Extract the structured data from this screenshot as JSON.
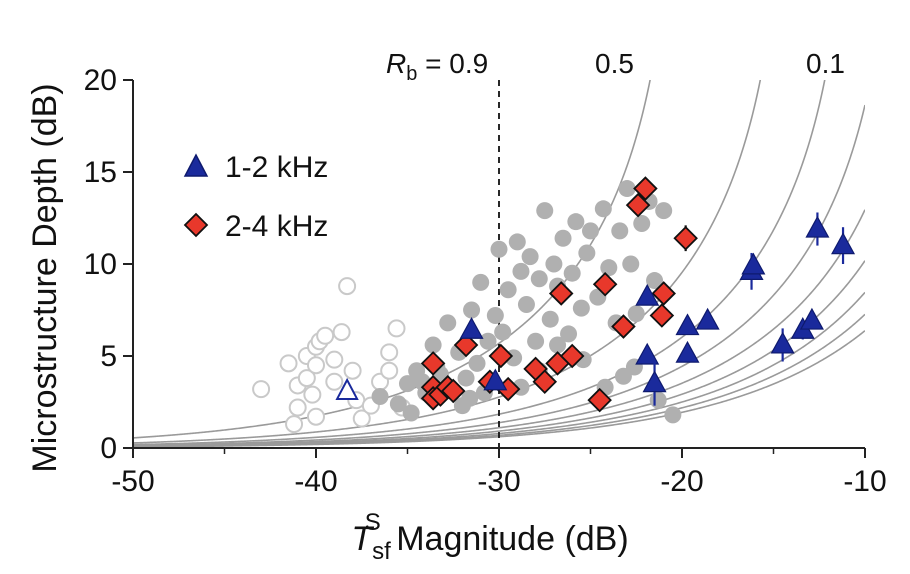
{
  "chart_data": {
    "type": "scatter",
    "xlabel": {
      "main": "T",
      "sub": "sf",
      "sup": "S",
      "rest": " Magnitude (dB)"
    },
    "ylabel": "Microstructure Depth (dB)",
    "xlim": [
      -50,
      -10
    ],
    "ylim": [
      0,
      20
    ],
    "xticks": [
      -50,
      -40,
      -30,
      -20,
      -10
    ],
    "yticks": [
      0,
      5,
      10,
      15,
      20
    ],
    "x_tick_labels": [
      "-50",
      "-40",
      "-30",
      "-20",
      "-10"
    ],
    "y_tick_labels": [
      "0",
      "5",
      "10",
      "15",
      "20"
    ],
    "curve_labels": {
      "first": {
        "symbol": "R",
        "sub": "b",
        "text": " = 0.9"
      },
      "middle": "0.5",
      "last": "0.1"
    },
    "curves": {
      "rb_values": [
        0.9,
        0.8,
        0.7,
        0.6,
        0.5,
        0.4,
        0.3,
        0.2,
        0.1
      ],
      "reference_line_x": -30
    },
    "legend": {
      "position": "upper-left",
      "entries": [
        {
          "label": "1-2 kHz",
          "marker": "triangle",
          "color": "#1a2a9c"
        },
        {
          "label": "2-4 kHz",
          "marker": "diamond",
          "color": "#e8382b"
        }
      ]
    },
    "colors": {
      "open_circle": "#c9c9c9",
      "gray_circle": "#b0b0b0",
      "blue": "#1a2a9c",
      "red": "#e8382b",
      "curve": "#9a9a9a"
    },
    "series": [
      {
        "marker": "open-circle",
        "points": [
          [
            -43,
            3.2
          ],
          [
            -41.5,
            4.6
          ],
          [
            -41,
            3.4
          ],
          [
            -41,
            2.2
          ],
          [
            -40.5,
            5.0
          ],
          [
            -40.5,
            3.8
          ],
          [
            -40,
            5.5
          ],
          [
            -40,
            4.5
          ],
          [
            -40,
            1.7
          ],
          [
            -39.8,
            5.8
          ],
          [
            -39.5,
            6.1
          ],
          [
            -39,
            4.8
          ],
          [
            -39,
            3.6
          ],
          [
            -38.6,
            6.3
          ],
          [
            -38.3,
            8.8
          ],
          [
            -38,
            4.2
          ],
          [
            -37.8,
            2.6
          ],
          [
            -37.5,
            1.6
          ],
          [
            -41.2,
            1.3
          ],
          [
            -40.2,
            2.9
          ],
          [
            -37,
            2.3
          ],
          [
            -36.5,
            3.6
          ],
          [
            -36,
            5.2
          ],
          [
            -36,
            4.2
          ],
          [
            -35.6,
            6.5
          ],
          [
            -35.3,
            2.2
          ]
        ]
      },
      {
        "marker": "gray-circle",
        "points": [
          [
            -36.5,
            2.8
          ],
          [
            -35,
            3.5
          ],
          [
            -34.8,
            1.9
          ],
          [
            -34.5,
            4.2
          ],
          [
            -34,
            3.0
          ],
          [
            -33.6,
            5.6
          ],
          [
            -33.2,
            4.0
          ],
          [
            -32.8,
            6.8
          ],
          [
            -32.5,
            3.1
          ],
          [
            -32,
            2.3
          ],
          [
            -31.5,
            7.5
          ],
          [
            -31.2,
            4.6
          ],
          [
            -31,
            9.0
          ],
          [
            -30.6,
            5.8
          ],
          [
            -30.2,
            7.2
          ],
          [
            -30,
            10.8
          ],
          [
            -29.8,
            6.3
          ],
          [
            -29.5,
            8.6
          ],
          [
            -29.2,
            4.9
          ],
          [
            -29,
            11.2
          ],
          [
            -28.8,
            9.6
          ],
          [
            -28.5,
            7.8
          ],
          [
            -28.3,
            10.4
          ],
          [
            -28,
            5.8
          ],
          [
            -27.8,
            9.2
          ],
          [
            -27.5,
            12.9
          ],
          [
            -27.2,
            7.0
          ],
          [
            -27,
            10.0
          ],
          [
            -26.8,
            8.8
          ],
          [
            -26.5,
            11.4
          ],
          [
            -26.2,
            6.2
          ],
          [
            -26,
            9.5
          ],
          [
            -25.8,
            12.3
          ],
          [
            -25.5,
            7.6
          ],
          [
            -25.2,
            10.6
          ],
          [
            -25,
            11.8
          ],
          [
            -24.6,
            8.2
          ],
          [
            -24.3,
            13.0
          ],
          [
            -24,
            9.8
          ],
          [
            -23.6,
            6.8
          ],
          [
            -23.4,
            11.8
          ],
          [
            -23,
            14.1
          ],
          [
            -22.8,
            10.0
          ],
          [
            -22.5,
            7.3
          ],
          [
            -22.2,
            12.2
          ],
          [
            -21.8,
            13.4
          ],
          [
            -21.5,
            9.1
          ],
          [
            -21,
            12.9
          ],
          [
            -20.5,
            1.8
          ],
          [
            -30.8,
            3.0
          ],
          [
            -31.6,
            2.7
          ],
          [
            -32.2,
            5.2
          ],
          [
            -33.4,
            4.4
          ],
          [
            -34.2,
            3.6
          ],
          [
            -35.5,
            2.4
          ],
          [
            -28.8,
            3.3
          ],
          [
            -27.8,
            4.2
          ],
          [
            -26.8,
            5.6
          ],
          [
            -25.4,
            4.8
          ],
          [
            -24.2,
            3.3
          ],
          [
            -23.2,
            3.9
          ],
          [
            -22.6,
            4.4
          ],
          [
            -21.3,
            2.6
          ],
          [
            -33,
            3.4
          ],
          [
            -31.8,
            3.8
          ]
        ]
      },
      {
        "marker": "red-diamond",
        "points": [
          [
            -33.6,
            4.6
          ],
          [
            -33.6,
            3.3
          ],
          [
            -33.6,
            2.7
          ],
          [
            -33.2,
            2.9
          ],
          [
            -32.8,
            3.3
          ],
          [
            -32.5,
            3.1
          ],
          [
            -31.8,
            5.6
          ],
          [
            -30.5,
            3.6
          ],
          [
            -29.9,
            5.0
          ],
          [
            -29.5,
            3.2
          ],
          [
            -28,
            4.3
          ],
          [
            -27.5,
            3.6
          ],
          [
            -26.8,
            4.6
          ],
          [
            -26.6,
            8.4
          ],
          [
            -26,
            5.0
          ],
          [
            -24.5,
            2.6
          ],
          [
            -24.2,
            8.9
          ],
          [
            -23.2,
            6.6
          ],
          [
            -22.4,
            13.2
          ],
          [
            -22,
            14.1
          ],
          [
            -21.1,
            7.2
          ],
          [
            -21,
            8.4
          ],
          [
            -19.8,
            11.4
          ]
        ],
        "errors": [
          0,
          0,
          0,
          0,
          0,
          0,
          0,
          0,
          0,
          0,
          0,
          0,
          0,
          0,
          0,
          0,
          0,
          0,
          0,
          0,
          0.4,
          0.5,
          0.7
        ]
      },
      {
        "marker": "blue-triangle",
        "points": [
          [
            -31.5,
            6.4
          ],
          [
            -30.2,
            3.6
          ],
          [
            -21.9,
            8.2
          ],
          [
            -21.9,
            5.0
          ],
          [
            -21.5,
            3.5
          ],
          [
            -19.7,
            6.6
          ],
          [
            -19.7,
            5.1
          ],
          [
            -18.6,
            6.9
          ],
          [
            -16.2,
            9.6
          ],
          [
            -16.1,
            9.9
          ],
          [
            -14.5,
            5.6
          ],
          [
            -13.4,
            6.4
          ],
          [
            -12.9,
            6.9
          ],
          [
            -12.6,
            11.9
          ],
          [
            -11.2,
            11.0
          ]
        ],
        "errors": [
          0,
          0,
          0,
          0,
          1.2,
          0,
          0,
          0,
          1.0,
          0.6,
          0.9,
          0.5,
          0.4,
          0.9,
          1.0
        ]
      },
      {
        "marker": "blue-open-triangle",
        "points": [
          [
            -38.3,
            3.1
          ]
        ]
      }
    ]
  }
}
